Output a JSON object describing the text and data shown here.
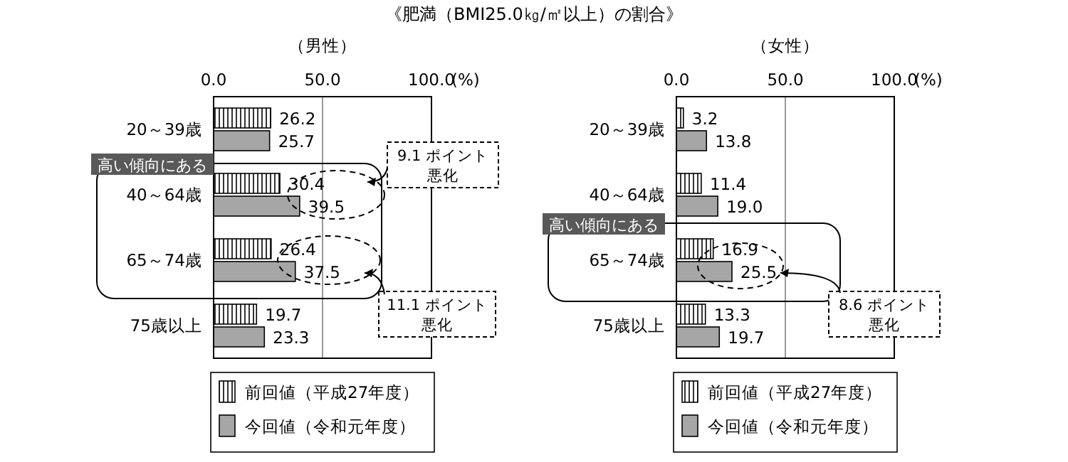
{
  "chart_data": [
    {
      "type": "bar",
      "orientation": "horizontal",
      "title": "《肥満（BMI25.0㎏/㎡以上）の割合》",
      "subtitle": "（男性）",
      "xlabel": "(%)",
      "categories": [
        "20～39歳",
        "40～64歳",
        "65～74歳",
        "75歳以上"
      ],
      "series": [
        {
          "name": "前回値（平成27年度）",
          "color": "#ffffff",
          "values": [
            26.2,
            30.4,
            26.4,
            19.7
          ],
          "value_labels": [
            "26.2",
            "30.4",
            "26.4",
            "19.7"
          ]
        },
        {
          "name": "今回値（令和元年度）",
          "color": "#a6a6a6",
          "values": [
            25.7,
            39.5,
            37.5,
            23.3
          ],
          "value_labels": [
            "25.7",
            "39.5",
            "37.5",
            "23.3"
          ]
        }
      ],
      "xlim": [
        0,
        100
      ],
      "xticks": [
        {
          "value": 0,
          "label": "0.0"
        },
        {
          "value": 50,
          "label": "50.0"
        },
        {
          "value": 100,
          "label": "100.0"
        }
      ],
      "grid": "x",
      "legend": "bottom",
      "annotations": [
        "高い傾向にある",
        "9.1 ポイント",
        "悪化",
        "11.1 ポイント",
        "悪化"
      ]
    },
    {
      "type": "bar",
      "orientation": "horizontal",
      "subtitle": "（女性）",
      "xlabel": "(%)",
      "categories": [
        "20～39歳",
        "40～64歳",
        "65～74歳",
        "75歳以上"
      ],
      "series": [
        {
          "name": "前回値（平成27年度）",
          "color": "#ffffff",
          "values": [
            3.2,
            11.4,
            16.9,
            13.3
          ],
          "value_labels": [
            "3.2",
            "11.4",
            "16.9",
            "13.3"
          ]
        },
        {
          "name": "今回値（令和元年度）",
          "color": "#a6a6a6",
          "values": [
            13.8,
            19.0,
            25.5,
            19.7
          ],
          "value_labels": [
            "13.8",
            "19.0",
            "25.5",
            "19.7"
          ]
        }
      ],
      "xlim": [
        0,
        100
      ],
      "xticks": [
        {
          "value": 0,
          "label": "0.0"
        },
        {
          "value": 50,
          "label": "50.0"
        },
        {
          "value": 100,
          "label": "100.0"
        }
      ],
      "grid": "x",
      "legend": "bottom",
      "annotations": [
        "高い傾向にある",
        "8.6 ポイント",
        "悪化"
      ]
    }
  ]
}
